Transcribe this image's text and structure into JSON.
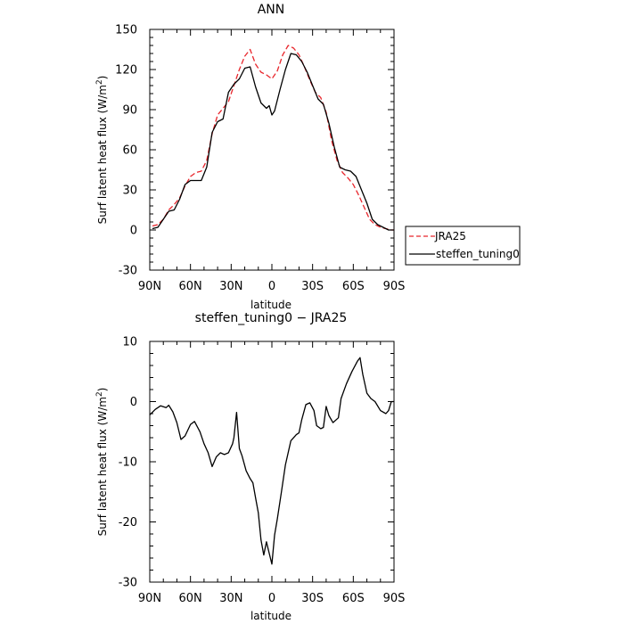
{
  "chart_data": [
    {
      "type": "line",
      "title": "ANN",
      "xlabel": "latitude",
      "ylabel": "Surf latent heat flux (W/m²)",
      "ylabel_main": "Surf latent heat flux (W/m",
      "ylabel_sup": "2",
      "ylabel_end": ")",
      "xlim": [
        90,
        -90
      ],
      "ylim": [
        -30,
        150
      ],
      "x_ticks": [
        90,
        60,
        30,
        0,
        -30,
        -60,
        -90
      ],
      "x_tick_labels": [
        "90N",
        "60N",
        "30N",
        "0",
        "30S",
        "60S",
        "90S"
      ],
      "y_ticks": [
        -30,
        0,
        30,
        60,
        90,
        120,
        150
      ],
      "y_tick_labels": [
        "-30",
        "0",
        "30",
        "60",
        "90",
        "120",
        "150"
      ],
      "legend_position": "right",
      "series": [
        {
          "name": "JRA25",
          "color": "#e8262c",
          "dash": "dashed",
          "x": [
            88,
            84,
            80,
            76,
            72,
            68,
            64,
            60,
            56,
            52,
            48,
            44,
            40,
            36,
            32,
            28,
            24,
            20,
            16,
            12,
            8,
            4,
            0,
            -4,
            -8,
            -12,
            -16,
            -20,
            -24,
            -28,
            -32,
            -36,
            -40,
            -44,
            -48,
            -52,
            -56,
            -60,
            -64,
            -68,
            -72,
            -76,
            -80,
            -84,
            -88,
            -90
          ],
          "y": [
            3,
            4,
            8,
            15,
            19,
            24,
            33,
            40,
            43,
            44,
            52,
            72,
            86,
            91,
            96,
            108,
            120,
            130,
            135,
            124,
            118,
            116,
            113,
            119,
            131,
            138,
            136,
            131,
            122,
            112,
            103,
            99,
            88,
            67,
            52,
            43,
            39,
            34,
            26,
            17,
            8,
            4,
            2,
            1,
            0,
            0
          ]
        },
        {
          "name": "steffen_tuning0",
          "color": "#000000",
          "dash": "solid",
          "x": [
            88,
            84,
            80,
            76,
            72,
            68,
            64,
            60,
            56,
            52,
            48,
            44,
            40,
            36,
            32,
            28,
            24,
            20,
            16,
            12,
            8,
            4,
            2,
            0,
            -2,
            -6,
            -10,
            -14,
            -18,
            -22,
            -26,
            -30,
            -34,
            -38,
            -42,
            -46,
            -50,
            -54,
            -58,
            -62,
            -66,
            -70,
            -74,
            -78,
            -82,
            -86,
            -90
          ],
          "y": [
            1,
            2,
            8,
            14,
            15,
            23,
            34,
            37,
            37,
            37,
            47,
            73,
            81,
            83,
            103,
            109,
            113,
            121,
            122,
            107,
            95,
            91,
            93,
            86,
            89,
            105,
            120,
            132,
            131,
            126,
            118,
            108,
            98,
            94,
            80,
            62,
            47,
            45,
            44,
            40,
            30,
            20,
            8,
            4,
            2,
            0,
            0
          ]
        }
      ]
    },
    {
      "type": "line",
      "title": "steffen_tuning0 − JRA25",
      "xlabel": "latitude",
      "ylabel": "Surf latent heat flux (W/m²)",
      "ylabel_main": "Surf latent heat flux (W/m",
      "ylabel_sup": "2",
      "ylabel_end": ")",
      "xlim": [
        90,
        -90
      ],
      "ylim": [
        -30,
        10
      ],
      "x_ticks": [
        90,
        60,
        30,
        0,
        -30,
        -60,
        -90
      ],
      "x_tick_labels": [
        "90N",
        "60N",
        "30N",
        "0",
        "30S",
        "60S",
        "90S"
      ],
      "y_ticks": [
        -30,
        -20,
        -10,
        0,
        10
      ],
      "y_tick_labels": [
        "-30",
        "-20",
        "-10",
        "0",
        "10"
      ],
      "series": [
        {
          "color": "#000000",
          "dash": "solid",
          "x": [
            90,
            86,
            82,
            78,
            76,
            73,
            70,
            67,
            64,
            60,
            57,
            53,
            50,
            47,
            44,
            41,
            38,
            35,
            32,
            29,
            28,
            26,
            24,
            22,
            19,
            16,
            14,
            12,
            10,
            8,
            6,
            4,
            2,
            0,
            -2,
            -4,
            -7,
            -10,
            -14,
            -18,
            -20,
            -22,
            -25,
            -28,
            -31,
            -33,
            -36,
            -38,
            -40,
            -42,
            -45,
            -49,
            -51,
            -55,
            -59,
            -63,
            -65,
            -67,
            -70,
            -73,
            -76,
            -80,
            -84,
            -86,
            -88,
            -90
          ],
          "y": [
            -2.2,
            -1.3,
            -0.7,
            -1,
            -0.6,
            -1.7,
            -3.5,
            -6.3,
            -5.7,
            -3.8,
            -3.3,
            -5,
            -7,
            -8.5,
            -10.8,
            -9.2,
            -8.5,
            -8.8,
            -8.5,
            -7,
            -6,
            -1.8,
            -7.8,
            -9,
            -11.5,
            -12.8,
            -13.5,
            -16,
            -18.5,
            -23,
            -25.5,
            -23.3,
            -25.2,
            -27,
            -22.2,
            -19.5,
            -15,
            -10.5,
            -6.5,
            -5.5,
            -5.2,
            -3,
            -0.5,
            -0.2,
            -1.5,
            -4,
            -4.5,
            -4.3,
            -0.8,
            -2.3,
            -3.5,
            -2.7,
            0.5,
            3,
            5,
            6.7,
            7.3,
            4.5,
            1.4,
            0.5,
            0,
            -1.5,
            -2,
            -1.5,
            0,
            0
          ]
        }
      ]
    }
  ]
}
